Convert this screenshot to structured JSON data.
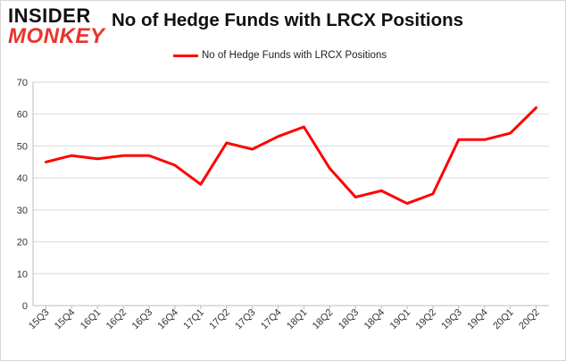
{
  "logo": {
    "line1": "INSIDER",
    "line2": "MONKEY",
    "accent_color": "#e8342d"
  },
  "chart_data": {
    "type": "line",
    "title": "No of Hedge Funds with LRCX Positions",
    "legend_position": "top-center",
    "grid": true,
    "xlabel": "",
    "ylabel": "",
    "ylim": [
      0,
      70
    ],
    "yticks": [
      0,
      10,
      20,
      30,
      40,
      50,
      60,
      70
    ],
    "categories": [
      "15Q3",
      "15Q4",
      "16Q1",
      "16Q2",
      "16Q3",
      "16Q4",
      "17Q1",
      "17Q2",
      "17Q3",
      "17Q4",
      "18Q1",
      "18Q2",
      "18Q3",
      "18Q4",
      "19Q1",
      "19Q2",
      "19Q3",
      "19Q4",
      "20Q1",
      "20Q2"
    ],
    "series": [
      {
        "name": "No of Hedge Funds with LRCX Positions",
        "color": "#ff0000",
        "values": [
          45,
          47,
          46,
          47,
          47,
          44,
          38,
          51,
          49,
          53,
          56,
          43,
          34,
          36,
          32,
          35,
          52,
          52,
          54,
          62
        ]
      }
    ]
  }
}
